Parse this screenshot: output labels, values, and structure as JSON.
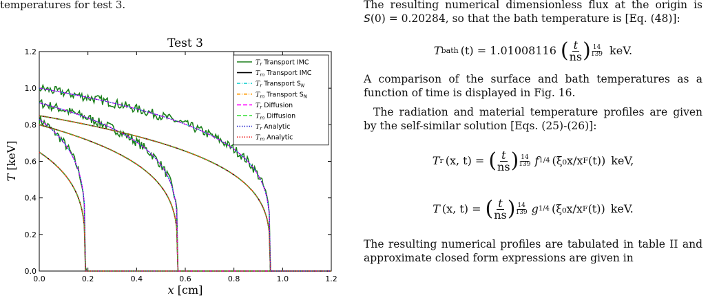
{
  "caption_tail": "temperatures for test 3.",
  "chart_data": {
    "type": "line",
    "title": "Test 3",
    "xlabel": "x [cm]",
    "ylabel": "T [keV]",
    "xlim": [
      0.0,
      1.2
    ],
    "ylim": [
      0.0,
      1.2
    ],
    "xticks": [
      "0.0",
      "0.2",
      "0.4",
      "0.6",
      "0.8",
      "1.0",
      "1.2"
    ],
    "yticks": [
      "0.0",
      "0.2",
      "0.4",
      "0.6",
      "0.8",
      "1.0",
      "1.2"
    ],
    "legend_position": "top-right",
    "grid": false,
    "legend": [
      {
        "sym": "T",
        "sub": "r",
        "label": "Transport IMC",
        "color": "#1a7f1a",
        "dash": "solid"
      },
      {
        "sym": "T",
        "sub": "m",
        "label": "Transport IMC",
        "color": "#000000",
        "dash": "solid"
      },
      {
        "sym": "T",
        "sub": "r",
        "label": "Transport S",
        "label_sub": "N",
        "color": "#33d6d6",
        "dash": "dashdot"
      },
      {
        "sym": "T",
        "sub": "m",
        "label": "Transport S",
        "label_sub": "N",
        "color": "#ff9900",
        "dash": "dashdot"
      },
      {
        "sym": "T",
        "sub": "r",
        "label": "Diffusion",
        "color": "#ff00ff",
        "dash": "dashed"
      },
      {
        "sym": "T",
        "sub": "m",
        "label": "Diffusion",
        "color": "#33dd33",
        "dash": "dashed"
      },
      {
        "sym": "T",
        "sub": "r",
        "label": "Analytic",
        "color": "#2222cc",
        "dash": "dotted"
      },
      {
        "sym": "T",
        "sub": "m",
        "label": "Analytic",
        "color": "#ee2222",
        "dash": "dotted"
      }
    ],
    "profiles": [
      {
        "front_x": 0.19,
        "surface_T": 0.83,
        "rad_surface_T": 0.83,
        "material_surface_T": 0.65
      },
      {
        "front_x": 0.57,
        "surface_T": 0.92,
        "rad_surface_T": 0.92,
        "material_surface_T": 0.8
      },
      {
        "front_x": 0.95,
        "surface_T": 1.0,
        "rad_surface_T": 1.0,
        "material_surface_T": 0.85
      }
    ]
  },
  "text": {
    "p1_a": "The resulting numerical dimensionless flux at the origin is ",
    "p1_flux": "S",
    "p1_arg": "(0) = 0.20284",
    "p1_b": ", so that the bath temperature is [Eq. (48)]:",
    "eq1_lhs": "T",
    "eq1_lhs_sub": "bath",
    "eq1_lhs_arg": "(t) = 1.01008116",
    "eq1_t": "t",
    "eq1_ns": "ns",
    "eq1_exp_num": "14",
    "eq1_exp_den": "139",
    "eq1_unit": "keV.",
    "p2": "A comparison of the surface and bath temperatures as a function of time is displayed in Fig. 16.",
    "p3": "The radiation and material temperature profiles are given by the self-similar solution [Eqs. (25)-(26)]:",
    "eq2_lhs": "T",
    "eq2_lhs_sub": "r",
    "eq2_lhs_arg": "(x, t) =",
    "eq2_f": "f",
    "eq2_pow": "1/4",
    "eq2_arg": "(ξ₀x/x",
    "eq2_argsub": "F",
    "eq2_arg_end": "(t))",
    "eq2_unit": "keV,",
    "eq3_lhs": "T",
    "eq3_lhs_arg": "(x, t) =",
    "eq3_g": "g",
    "eq3_unit": "keV.",
    "p4": "The resulting numerical profiles are tabulated in table II and approximate closed form expressions are given in"
  }
}
